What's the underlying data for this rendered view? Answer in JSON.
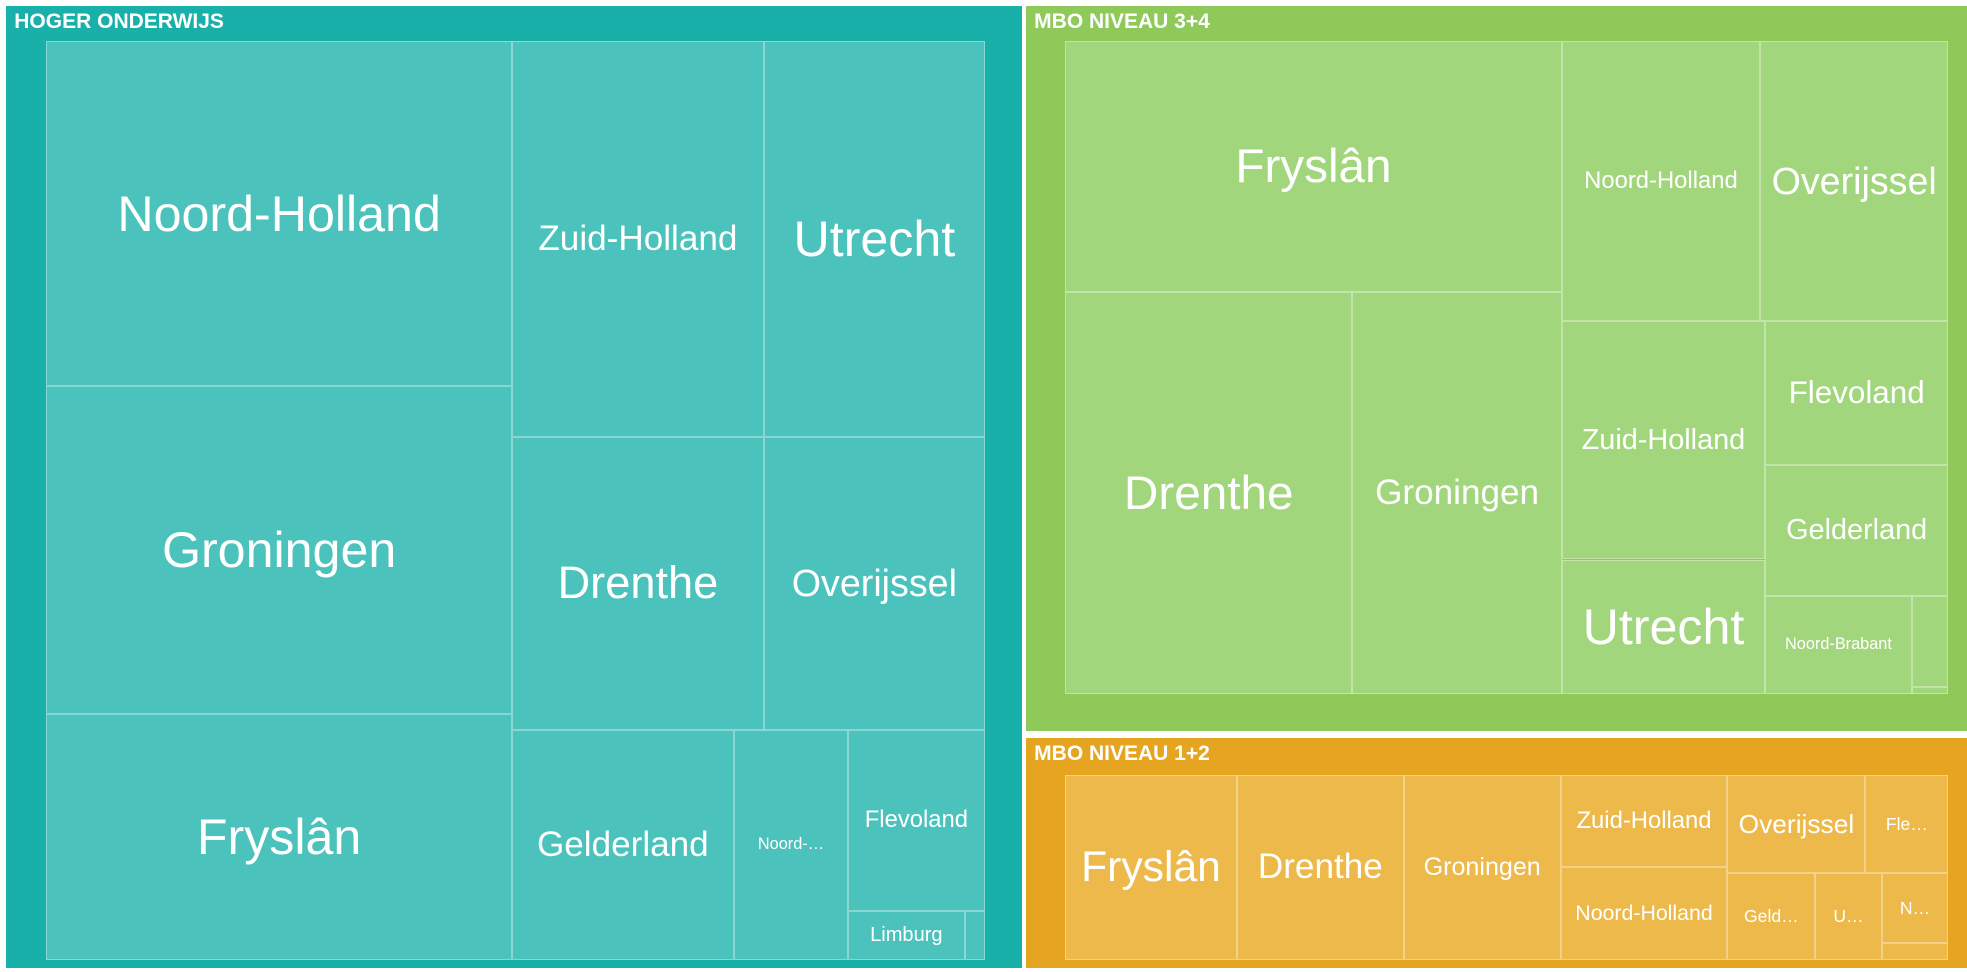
{
  "chart_data": {
    "type": "treemap",
    "groups": [
      {
        "name": "HOGER ONDERWIJS",
        "color": "#19b0aa",
        "tile_color": "#4bc2bc",
        "children": [
          "Noord-Holland",
          "Groningen",
          "Fryslân",
          "Zuid-Holland",
          "Utrecht",
          "Drenthe",
          "Overijssel",
          "Gelderland",
          "Noord-…",
          "Flevoland",
          "Limburg",
          null
        ]
      },
      {
        "name": "MBO NIVEAU 3+4",
        "color": "#8ec95a",
        "tile_color": "#a2d67c",
        "children": [
          "Fryslân",
          "Drenthe",
          "Groningen",
          "Noord-Holland",
          "Overijssel",
          "Zuid-Holland",
          "Flevoland",
          "Gelderland",
          "Utrecht",
          "Noord-Brabant",
          null,
          null
        ]
      },
      {
        "name": "MBO NIVEAU 1+2",
        "color": "#e6a520",
        "tile_color": "#edb94b",
        "children": [
          "Fryslân",
          "Drenthe",
          "Groningen",
          "Zuid-Holland",
          "Noord-Holland",
          "Overijssel",
          "Fle…",
          "Geld…",
          "U…",
          "N…",
          null
        ]
      }
    ]
  }
}
